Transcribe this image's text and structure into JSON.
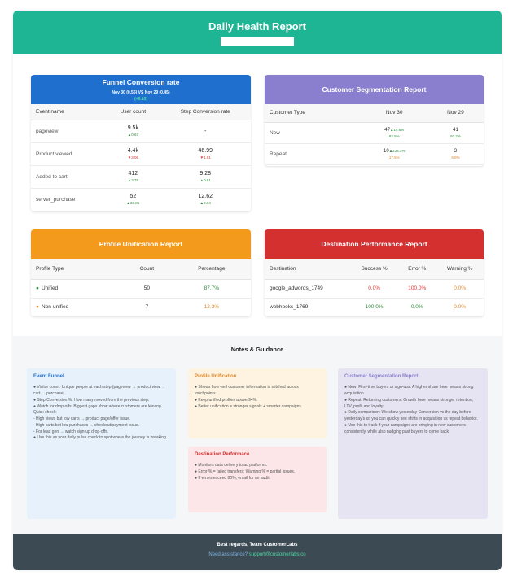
{
  "header": {
    "title": "Daily Health Report"
  },
  "funnel": {
    "title": "Funnel Conversion rate",
    "subtitle": "Nov 30 (0.55) VS Nov 29 (0.45)",
    "delta": "(+0.10)",
    "color": "#1f6fcf",
    "columns": [
      "Event name",
      "User count",
      "Step Conversion rate"
    ],
    "rows": [
      {
        "name": "pageview",
        "count": "9.5k",
        "count_delta": "▲0.67",
        "count_dir": "up",
        "rate": "-",
        "rate_delta": "",
        "rate_dir": ""
      },
      {
        "name": "Product viewed",
        "count": "4.4k",
        "count_delta": "▼3.06",
        "count_dir": "dn",
        "rate": "46.99",
        "rate_delta": "▼1.81",
        "rate_dir": "dn"
      },
      {
        "name": "Added to cart",
        "count": "412",
        "count_delta": "▲3.78",
        "count_dir": "up",
        "rate": "9.28",
        "rate_delta": "▲0.61",
        "rate_dir": "up"
      },
      {
        "name": "server_purchase",
        "count": "52",
        "count_delta": "▲23.81",
        "count_dir": "up",
        "rate": "12.62",
        "rate_delta": "▲2.04",
        "rate_dir": "up"
      }
    ]
  },
  "segmentation": {
    "title": "Customer Segmentation Report",
    "color": "#8a7fcf",
    "columns": [
      "Customer Type",
      "Nov 30",
      "Nov 29"
    ],
    "rows": [
      {
        "type": "New",
        "nov30": "47",
        "nov30_delta": "▲14.6%",
        "nov30_pct": "82.5%",
        "nov29": "41",
        "nov29_pct": "93.2%"
      },
      {
        "type": "Repeat",
        "nov30": "10",
        "nov30_delta": "▲233.3%",
        "nov30_pct": "17.5%",
        "nov29": "3",
        "nov29_pct": "6.8%"
      }
    ]
  },
  "profile": {
    "title": "Profile Unification Report",
    "color": "#f39a1c",
    "columns": [
      "Profile Type",
      "Count",
      "Percentage"
    ],
    "rows": [
      {
        "type": "Unified",
        "count": "50",
        "pct": "87.7%",
        "dot": "#2e8b3c"
      },
      {
        "type": "Non-unified",
        "count": "7",
        "pct": "12.3%",
        "dot": "#e08a2c"
      }
    ]
  },
  "destination": {
    "title": "Destination Performance Report",
    "color": "#d3302f",
    "columns": [
      "Destination",
      "Success %",
      "Error %",
      "Warning %"
    ],
    "rows": [
      {
        "name": "google_adwords_1749",
        "success": "0.0%",
        "error": "100.0%",
        "warning": "0.0%"
      },
      {
        "name": "webhooks_1769",
        "success": "100.0%",
        "error": "0.0%",
        "warning": "0.0%"
      }
    ]
  },
  "notes": {
    "heading": "Notes & Guidance",
    "event_funnel": {
      "title": "Event Funnel",
      "lines": [
        "● Visitor count: Unique people at each step (pageview → product view → cart → purchase).",
        "● Step Conversion %: How many moved from the previous step.",
        "● Watch for drop-offs: Biggest gaps show where customers are leaving.",
        "Quick check:",
        "- High views but low carts → product page/offer issue.",
        "- High carts but low purchases → checkout/payment issue.",
        "- For lead gen → watch sign-up drop-offs.",
        "● Use this as your daily pulse check to spot where the journey is breaking."
      ]
    },
    "profile_unification": {
      "title": "Profile Unification",
      "lines": [
        "● Shows how well customer information is stitched across touchpoints.",
        "● Keep unified profiles above 94%.",
        "● Better unification = stronger signals + smarter campaigns."
      ]
    },
    "destination_performance": {
      "title": "Destination Performace",
      "lines": [
        "● Monitors data delivery to ad platforms.",
        "● Error % = failed transfers; Warning % = partial issues.",
        "● If errors exceed 80%, email for an audit."
      ]
    },
    "customer_segmentation": {
      "title": "Customer Segmentation Report",
      "lines": [
        "● New: First-time buyers or sign-ups. A higher share here means strong acquisition.",
        "● Repeat: Returning customers. Growth here means stronger retention, LTV, profit and loyalty.",
        "● Daily comparison: We show yesterday Conversion vs the day before yesterday's so you can quickly see shifts in acquisition vs repeat behavior.",
        "● Use this to track if your campaigns are bringing in new customers consistently, while also nudging past buyers to come back."
      ]
    }
  },
  "footer": {
    "regards": "Best regards, Team CustomerLabs",
    "help_label": "Need assistance?",
    "email": "support@customerlabs.co"
  }
}
